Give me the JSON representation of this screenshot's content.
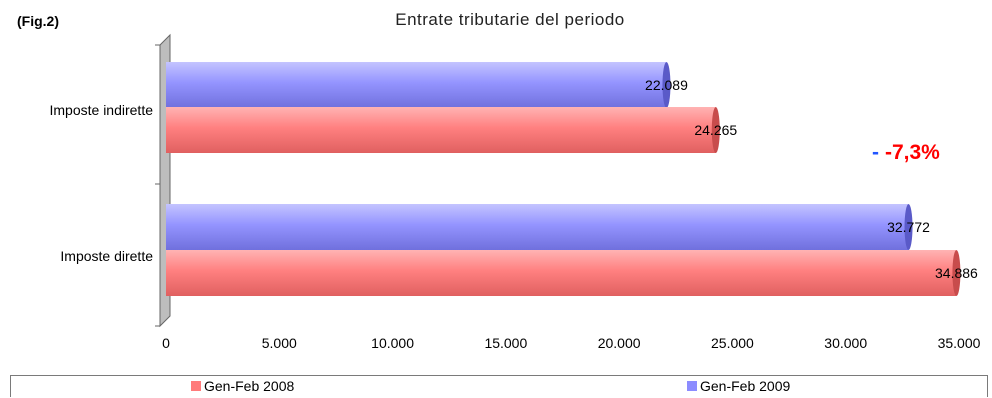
{
  "figure_label": "(Fig.2)",
  "annotation": {
    "dash": "-",
    "value": "-7,3%"
  },
  "colors": {
    "Gen-Feb 2008": "#ff7b7b",
    "Gen-Feb 2009": "#8c8cff"
  },
  "chart_data": {
    "type": "bar",
    "orientation": "horizontal",
    "title": "Entrate tributarie del periodo",
    "categories": [
      "Imposte indirette",
      "Imposte dirette"
    ],
    "series": [
      {
        "name": "Gen-Feb 2009",
        "values": [
          22089,
          32772
        ],
        "labels": [
          "22.089",
          "32.772"
        ]
      },
      {
        "name": "Gen-Feb 2008",
        "values": [
          24265,
          34886
        ],
        "labels": [
          "24.265",
          "34.886"
        ]
      }
    ],
    "xlim": [
      0,
      35000
    ],
    "xticks": [
      0,
      5000,
      10000,
      15000,
      20000,
      25000,
      30000,
      35000
    ],
    "xtick_labels": [
      "0",
      "5.000",
      "10.000",
      "15.000",
      "20.000",
      "25.000",
      "30.000",
      "35.000"
    ],
    "grid": false,
    "legend": {
      "position": "bottom",
      "entries": [
        "Gen-Feb 2008",
        "Gen-Feb 2009"
      ]
    }
  }
}
